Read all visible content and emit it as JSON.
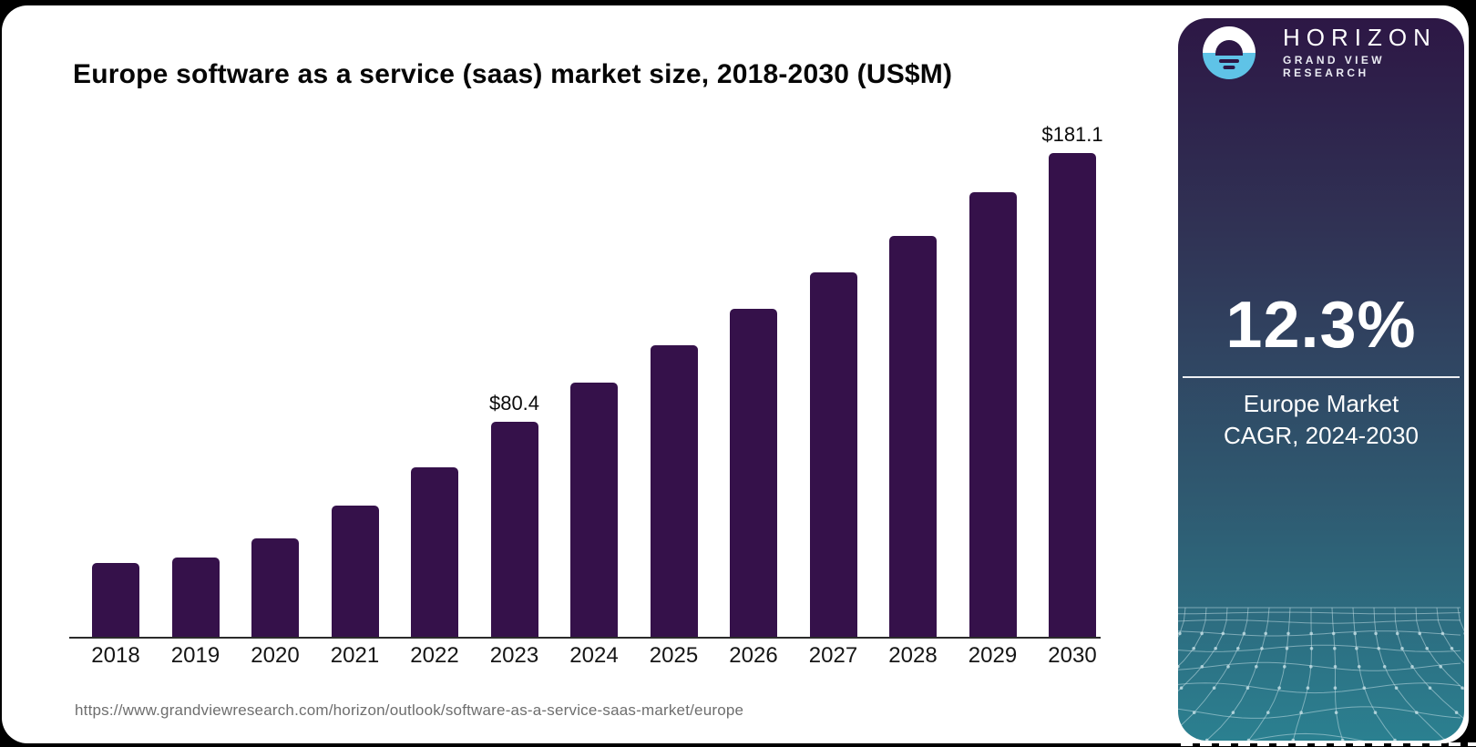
{
  "page": {
    "background_color": "#000000",
    "card_color": "#ffffff",
    "title": "Europe software as a service (saas) market size, 2018-2030 (US$M)",
    "source_url": "https://www.grandviewresearch.com/horizon/outlook/software-as-a-service-saas-market/europe"
  },
  "chart_data": {
    "type": "bar",
    "title": "Europe software as a service (saas) market size, 2018-2030 (US$M)",
    "unit": "US$M",
    "categories": [
      "2018",
      "2019",
      "2020",
      "2021",
      "2022",
      "2023",
      "2024",
      "2025",
      "2026",
      "2027",
      "2028",
      "2029",
      "2030"
    ],
    "values": [
      27.6,
      29.7,
      37.0,
      49.2,
      63.5,
      80.4,
      95.0,
      109.0,
      122.8,
      136.5,
      150.0,
      166.5,
      181.1
    ],
    "data_labels": {
      "2023": "$80.4",
      "2030": "$181.1"
    },
    "bar_color": "#35114a",
    "axis_color": "#2b2b2b",
    "tick_label_color": "#151515",
    "ylim": [
      0,
      190
    ],
    "grid": false,
    "legend": "none",
    "xlabel": "",
    "ylabel": ""
  },
  "sidebar": {
    "brand": "HORIZON",
    "brand_sub": "GRAND VIEW RESEARCH",
    "stat_value": "12.3%",
    "stat_caption_line1": "Europe Market",
    "stat_caption_line2": "CAGR, 2024-2030",
    "colors": {
      "gradient_top": "#2d1745",
      "gradient_upper_mid": "#303355",
      "gradient_lower_mid": "#2f5970",
      "gradient_bottom": "#2b8090",
      "logo_blue": "#5fc3e7",
      "logo_white": "#ffffff",
      "text": "#ffffff"
    }
  }
}
